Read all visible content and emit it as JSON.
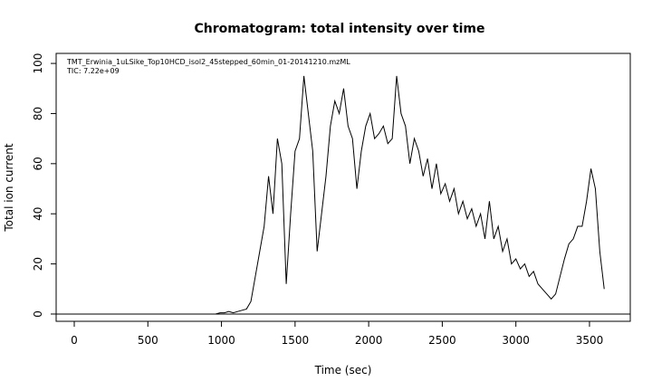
{
  "chart_data": {
    "type": "line",
    "title": "Chromatogram: total intensity over time",
    "x_label": "Time (sec)",
    "y_label": "Total ion current",
    "annotations": [
      "TMT_Erwinia_1uLSike_Top10HCD_isol2_45stepped_60min_01-20141210.mzML",
      "TIC: 7.22e+09"
    ],
    "x": [
      0,
      30,
      60,
      90,
      120,
      150,
      180,
      210,
      240,
      270,
      300,
      330,
      360,
      390,
      420,
      450,
      480,
      510,
      540,
      570,
      600,
      630,
      660,
      690,
      720,
      750,
      780,
      810,
      840,
      870,
      900,
      930,
      960,
      990,
      1020,
      1050,
      1080,
      1110,
      1140,
      1170,
      1200,
      1230,
      1260,
      1290,
      1320,
      1350,
      1380,
      1410,
      1440,
      1470,
      1500,
      1530,
      1560,
      1590,
      1620,
      1650,
      1680,
      1710,
      1740,
      1770,
      1800,
      1830,
      1860,
      1890,
      1920,
      1950,
      1980,
      2010,
      2040,
      2070,
      2100,
      2130,
      2160,
      2190,
      2220,
      2250,
      2280,
      2310,
      2340,
      2370,
      2400,
      2430,
      2460,
      2490,
      2520,
      2550,
      2580,
      2610,
      2640,
      2670,
      2700,
      2730,
      2760,
      2790,
      2820,
      2850,
      2880,
      2910,
      2940,
      2970,
      3000,
      3030,
      3060,
      3090,
      3120,
      3150,
      3180,
      3210,
      3240,
      3270,
      3300,
      3330,
      3360,
      3390,
      3420,
      3450,
      3480,
      3510,
      3540,
      3570,
      3600
    ],
    "series": [
      {
        "name": "TIC",
        "color": "#000000",
        "values": [
          0,
          0,
          0,
          0,
          0,
          0,
          0,
          0,
          0,
          0,
          0,
          0,
          0,
          0,
          0,
          0,
          0,
          0,
          0,
          0,
          0,
          0,
          0,
          0,
          0,
          0,
          0,
          0,
          0,
          0,
          0,
          0,
          0,
          0.5,
          0.5,
          1,
          0.5,
          1,
          1.5,
          2,
          5,
          15,
          25,
          35,
          55,
          40,
          70,
          60,
          12,
          40,
          65,
          70,
          95,
          80,
          65,
          25,
          40,
          55,
          75,
          85,
          80,
          90,
          75,
          70,
          50,
          65,
          75,
          80,
          70,
          72,
          75,
          68,
          70,
          95,
          80,
          75,
          60,
          70,
          65,
          55,
          62,
          50,
          60,
          48,
          52,
          45,
          50,
          40,
          45,
          38,
          42,
          35,
          40,
          30,
          45,
          30,
          35,
          25,
          30,
          20,
          22,
          18,
          20,
          15,
          17,
          12,
          10,
          8,
          6,
          8,
          15,
          22,
          28,
          30,
          35,
          35,
          45,
          58,
          50,
          25,
          10
        ]
      }
    ],
    "xlim": [
      -123,
      3777
    ],
    "ylim": [
      -2.9,
      104
    ],
    "xticks": [
      0,
      500,
      1000,
      1500,
      2000,
      2500,
      3000,
      3500
    ],
    "yticks": [
      0,
      20,
      40,
      60,
      80,
      100
    ],
    "hlines": [
      0
    ]
  }
}
